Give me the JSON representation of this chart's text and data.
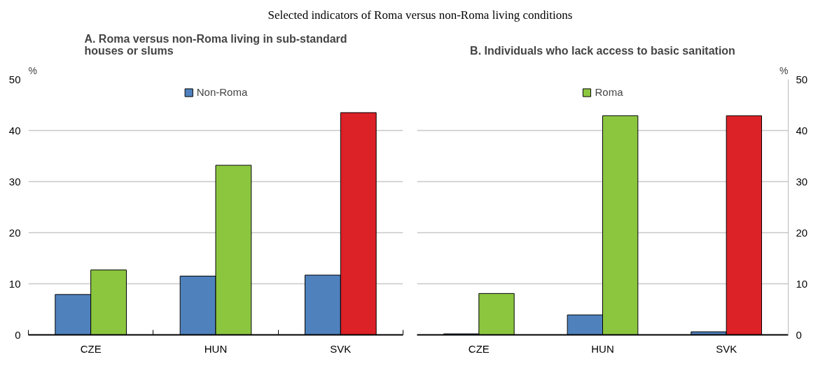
{
  "chart_data": [
    {
      "type": "other",
      "title": "Selected indicators of Roma versus non-Roma living conditions"
    },
    {
      "type": "bar",
      "title": "A. Roma versus non-Roma living in sub-standard houses  or slums",
      "ylabel": "%",
      "categories": [
        "CZE",
        "HUN",
        "SVK"
      ],
      "ylim": [
        0,
        50
      ],
      "yticks": [
        0,
        10,
        20,
        30,
        40,
        50
      ],
      "grid": "y",
      "legend": "top",
      "series": [
        {
          "name": "Non-Roma",
          "color": "#4f81bd",
          "values": [
            7.9,
            11.5,
            11.7
          ]
        },
        {
          "color": "#8cc63f",
          "colors": [
            null,
            null,
            "#dc2127"
          ],
          "values": [
            12.7,
            33.2,
            43.5
          ]
        }
      ]
    },
    {
      "type": "bar",
      "title": "B. Individuals who lack access to basic sanitation",
      "y2label": "%",
      "categories": [
        "CZE",
        "HUN",
        "SVK"
      ],
      "y2lim": [
        0,
        50
      ],
      "y2ticks": [
        0,
        10,
        20,
        30,
        40,
        50
      ],
      "grid": "y",
      "legend": "top",
      "series": [
        {
          "color": "#4f81bd",
          "axis": "y2",
          "values": [
            0.2,
            3.9,
            0.6
          ]
        },
        {
          "name": "Roma",
          "color": "#8cc63f",
          "colors": [
            null,
            null,
            "#dc2127"
          ],
          "axis": "y2",
          "values": [
            8.1,
            42.9,
            42.9
          ]
        }
      ]
    }
  ]
}
